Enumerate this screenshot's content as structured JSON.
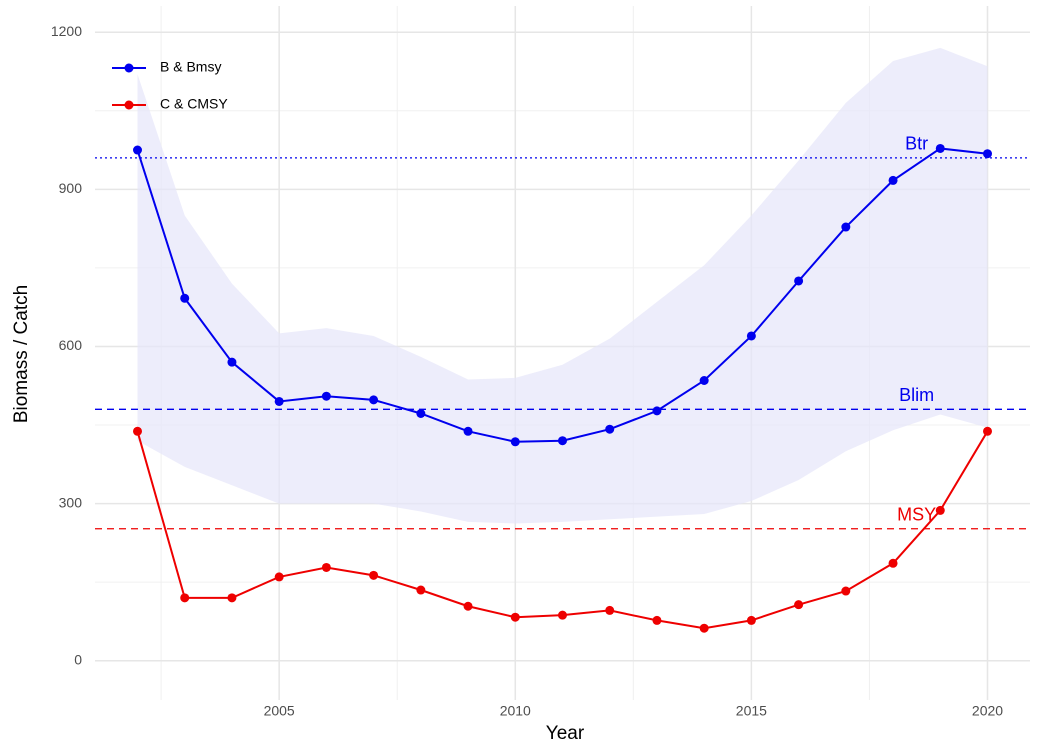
{
  "chart_data": {
    "type": "line",
    "xlabel": "Year",
    "ylabel": "Biomass / Catch",
    "x": [
      2002,
      2003,
      2004,
      2005,
      2006,
      2007,
      2008,
      2009,
      2010,
      2011,
      2012,
      2013,
      2014,
      2015,
      2016,
      2017,
      2018,
      2019,
      2020
    ],
    "series": [
      {
        "name": "B & Bmsy",
        "color": "#0000ee",
        "values": [
          975,
          692,
          570,
          495,
          505,
          498,
          472,
          438,
          418,
          420,
          442,
          477,
          535,
          620,
          725,
          828,
          917,
          978,
          968
        ]
      },
      {
        "name": "C & CMSY",
        "color": "#ee0000",
        "values": [
          438,
          120,
          120,
          160,
          178,
          163,
          135,
          104,
          83,
          87,
          96,
          77,
          62,
          77,
          107,
          133,
          186,
          287,
          438
        ]
      }
    ],
    "band": {
      "color": "#e6e6fa",
      "upper": [
        1120,
        850,
        720,
        625,
        635,
        620,
        580,
        537,
        540,
        565,
        615,
        685,
        755,
        850,
        955,
        1065,
        1145,
        1170,
        1135
      ],
      "lower": [
        420,
        370,
        335,
        300,
        300,
        300,
        285,
        265,
        262,
        265,
        270,
        275,
        280,
        305,
        345,
        400,
        440,
        470,
        445
      ]
    },
    "reference_lines": [
      {
        "label": "Btr",
        "value": 960,
        "color": "#0000ee",
        "linestyle": "dotted"
      },
      {
        "label": "Blim",
        "value": 480,
        "color": "#0000ee",
        "linestyle": "dashed"
      },
      {
        "label": "MSY",
        "value": 252,
        "color": "#ee0000",
        "linestyle": "dashed"
      }
    ],
    "xlim": [
      2001.1,
      2020.9
    ],
    "ylim": [
      -75,
      1250
    ],
    "xticks": [
      2005,
      2010,
      2015,
      2020
    ],
    "yticks": [
      0,
      300,
      600,
      900,
      1200
    ],
    "grid": true,
    "minor_grid": true,
    "legend": "top-left"
  }
}
